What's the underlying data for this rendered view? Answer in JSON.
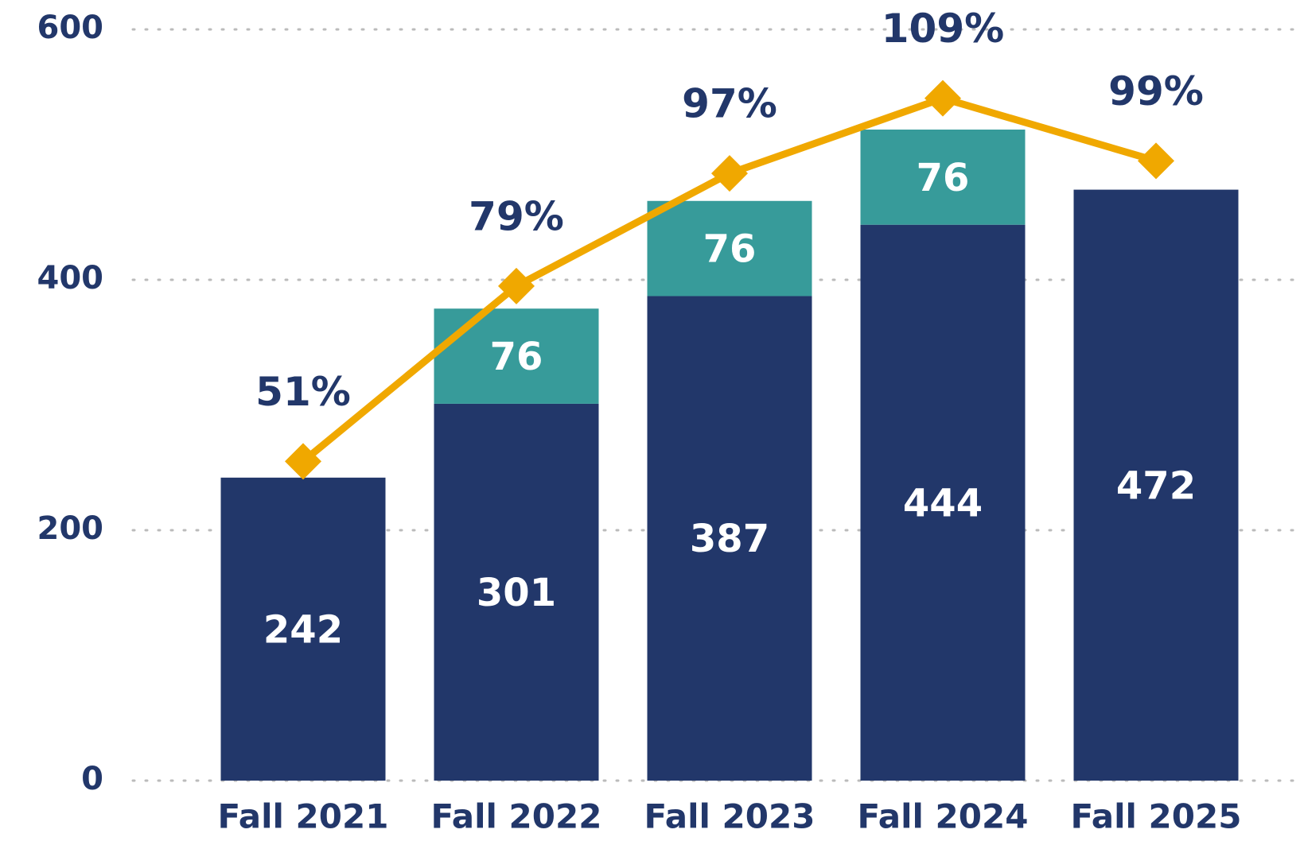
{
  "chart_data": {
    "type": "bar",
    "categories": [
      "Fall 2021",
      "Fall 2022",
      "Fall 2023",
      "Fall 2024",
      "Fall 2025"
    ],
    "stacked": true,
    "series": [
      {
        "type": "bar",
        "color": "#22376a",
        "values": [
          242,
          301,
          387,
          444,
          472
        ]
      },
      {
        "type": "bar",
        "color": "#379b9a",
        "values": [
          null,
          76,
          76,
          76,
          null
        ]
      },
      {
        "type": "line",
        "axis": "y2",
        "color": "#f0a800",
        "values": [
          51,
          79,
          97,
          109,
          99
        ],
        "value_labels": [
          "51%",
          "79%",
          "97%",
          "109%",
          "99%"
        ]
      }
    ],
    "ylim": [
      0,
      600
    ],
    "yticks": [
      0,
      200,
      400,
      600
    ],
    "y2lim": [
      0,
      120
    ],
    "grid": true
  }
}
